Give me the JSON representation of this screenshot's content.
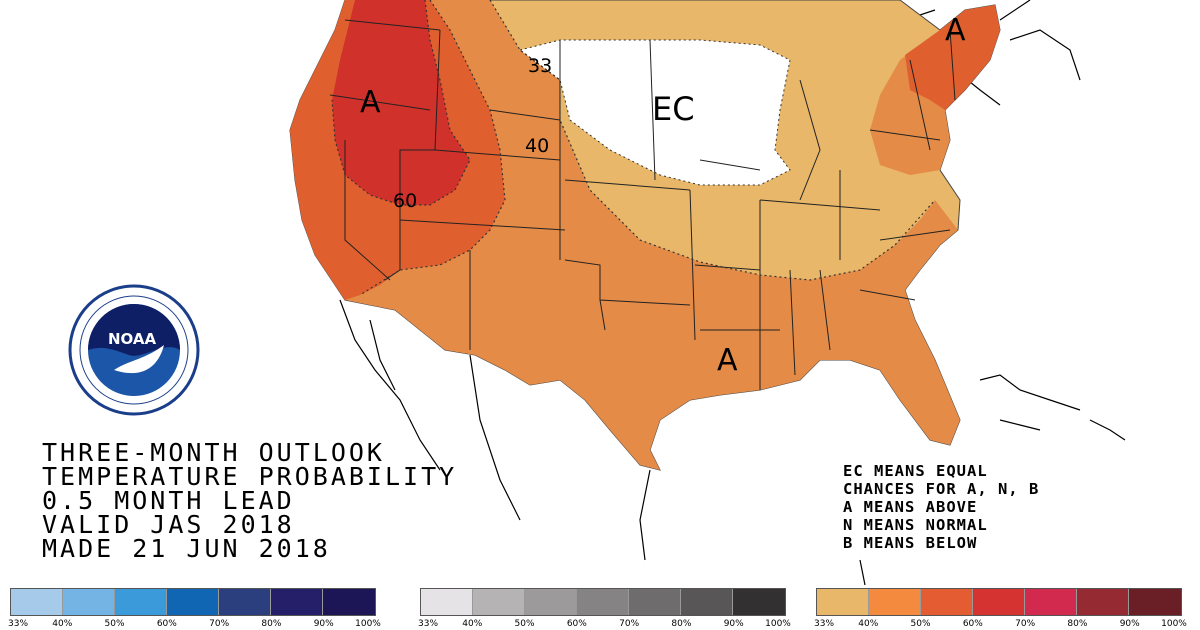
{
  "map": {
    "region_labels": [
      {
        "id": "west",
        "text": "A"
      },
      {
        "id": "northeast",
        "text": "A"
      },
      {
        "id": "gulf",
        "text": "A"
      },
      {
        "id": "midwest",
        "text": "EC"
      }
    ],
    "contour_labels": [
      "33",
      "40",
      "60"
    ],
    "category_colors": {
      "above_33": "#e8b769",
      "above_40": "#e48b47",
      "above_50": "#df5f2f",
      "above_60": "#d1312b"
    }
  },
  "title_lines": [
    "THREE-MONTH OUTLOOK",
    "TEMPERATURE PROBABILITY",
    "0.5 MONTH LEAD",
    "VALID JAS 2018",
    "MADE 21 JUN 2018"
  ],
  "legend_notes": [
    "EC MEANS EQUAL",
    "CHANCES FOR A, N, B",
    "A MEANS ABOVE",
    "N MEANS NORMAL",
    "B MEANS BELOW"
  ],
  "color_scales": [
    {
      "id": "below",
      "colors": [
        "#a6cbea",
        "#74b4e4",
        "#3b9ad9",
        "#1166b3",
        "#2b3e7e",
        "#251f6a",
        "#1d1656"
      ],
      "ticks": [
        "33%",
        "40%",
        "50%",
        "60%",
        "70%",
        "80%",
        "90%",
        "100%"
      ]
    },
    {
      "id": "normal",
      "colors": [
        "#e5e3e5",
        "#b5b3b4",
        "#9c9a9b",
        "#858384",
        "#6e6c6d",
        "#585657",
        "#323031"
      ],
      "ticks": [
        "33%",
        "40%",
        "50%",
        "60%",
        "70%",
        "80%",
        "90%",
        "100%"
      ]
    },
    {
      "id": "above",
      "colors": [
        "#e8b769",
        "#f48a3d",
        "#e45d32",
        "#d43331",
        "#d2294f",
        "#962a33",
        "#6a1e25"
      ],
      "ticks": [
        "33%",
        "40%",
        "50%",
        "60%",
        "70%",
        "80%",
        "90%",
        "100%"
      ]
    }
  ]
}
